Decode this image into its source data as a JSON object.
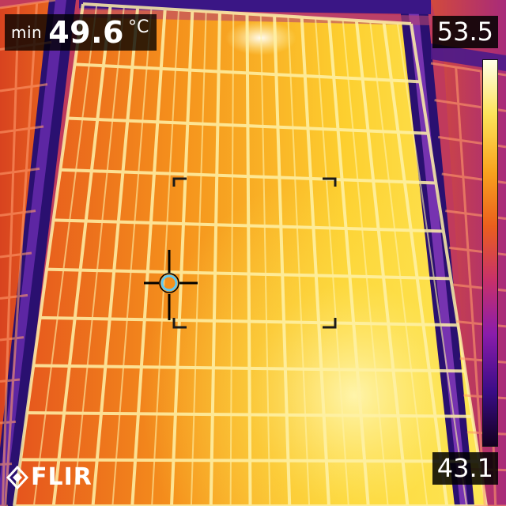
{
  "overlay": {
    "min_label": "min",
    "min_value": "49.6",
    "min_unit": "°C"
  },
  "scale": {
    "max": "53.5",
    "min": "43.1",
    "palette": [
      "#14001f",
      "#3a0c86",
      "#8a1cab",
      "#c8306a",
      "#eb5f1d",
      "#f9a21e",
      "#fde35a",
      "#ffffe8"
    ]
  },
  "logo": {
    "brand": "FLIR",
    "icon": "flir-logo-icon"
  },
  "colors": {
    "frame_cold": "#40208a",
    "panel_warm": "#f08a1a",
    "panel_hot": "#fde84a",
    "grid_line": "#fff4b0",
    "reticle": "#000000",
    "spot_ring": "#5ec8f2"
  }
}
